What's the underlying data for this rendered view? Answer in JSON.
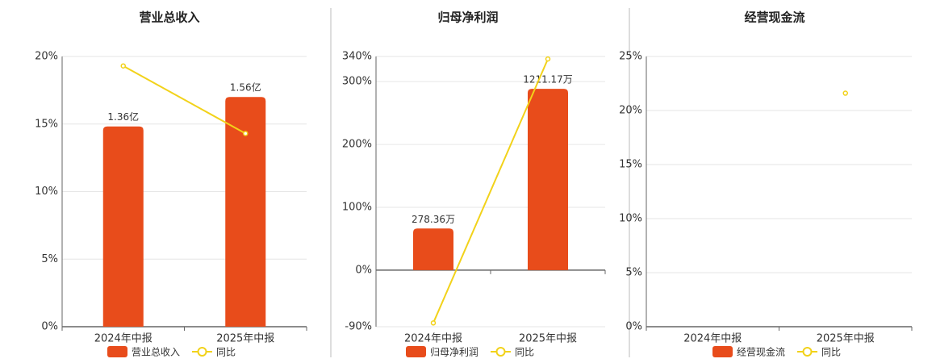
{
  "chart_data": [
    {
      "type": "bar",
      "title": "营业总收入",
      "categories": [
        "2024年中报",
        "2025年中报"
      ],
      "series": [
        {
          "name": "营业总收入",
          "color": "#e84c1b",
          "values": [
            1.36,
            1.56
          ],
          "value_labels": [
            "1.36亿",
            "1.56亿"
          ],
          "axis": "y2"
        },
        {
          "name": "同比",
          "type": "line",
          "color": "#f2d21a",
          "values": [
            19.3,
            14.3
          ]
        }
      ],
      "ylim": [
        0,
        20
      ],
      "yticks": [
        {
          "value": 0,
          "label": "0%"
        },
        {
          "value": 5,
          "label": "5%"
        },
        {
          "value": 10,
          "label": "10%"
        },
        {
          "value": 15,
          "label": "15%"
        },
        {
          "value": 20,
          "label": "20%"
        }
      ],
      "y2lim": [
        0,
        1.835
      ],
      "grid": true,
      "legend": "bottom"
    },
    {
      "type": "bar",
      "title": "归母净利润",
      "categories": [
        "2024年中报",
        "2025年中报"
      ],
      "series": [
        {
          "name": "归母净利润",
          "color": "#e84c1b",
          "values": [
            278.36,
            1211.17
          ],
          "value_labels": [
            "278.36万",
            "1211.17万"
          ],
          "axis": "y2"
        },
        {
          "name": "同比",
          "type": "line",
          "color": "#f2d21a",
          "values": [
            -84,
            336
          ]
        }
      ],
      "ylim": [
        -90,
        340
      ],
      "yticks": [
        {
          "value": -90,
          "label": "-90%"
        },
        {
          "value": 0,
          "label": "0%"
        },
        {
          "value": 100,
          "label": "100%"
        },
        {
          "value": 200,
          "label": "200%"
        },
        {
          "value": 300,
          "label": "300%"
        },
        {
          "value": 340,
          "label": "340%"
        }
      ],
      "y2lim": [
        -377,
        1427
      ],
      "grid": true,
      "legend": "bottom"
    },
    {
      "type": "bar",
      "title": "经营现金流",
      "categories": [
        "2024年中报",
        "2025年中报"
      ],
      "series": [
        {
          "name": "经营现金流",
          "color": "#e84c1b",
          "values": [
            null,
            null
          ],
          "axis": "y2"
        },
        {
          "name": "同比",
          "type": "line",
          "color": "#f2d21a",
          "values": [
            null,
            21.6
          ]
        }
      ],
      "ylim": [
        0,
        25
      ],
      "yticks": [
        {
          "value": 0,
          "label": "0%"
        },
        {
          "value": 5,
          "label": "5%"
        },
        {
          "value": 10,
          "label": "10%"
        },
        {
          "value": 15,
          "label": "15%"
        },
        {
          "value": 20,
          "label": "20%"
        },
        {
          "value": 25,
          "label": "25%"
        }
      ],
      "grid": true,
      "legend": "bottom"
    }
  ]
}
